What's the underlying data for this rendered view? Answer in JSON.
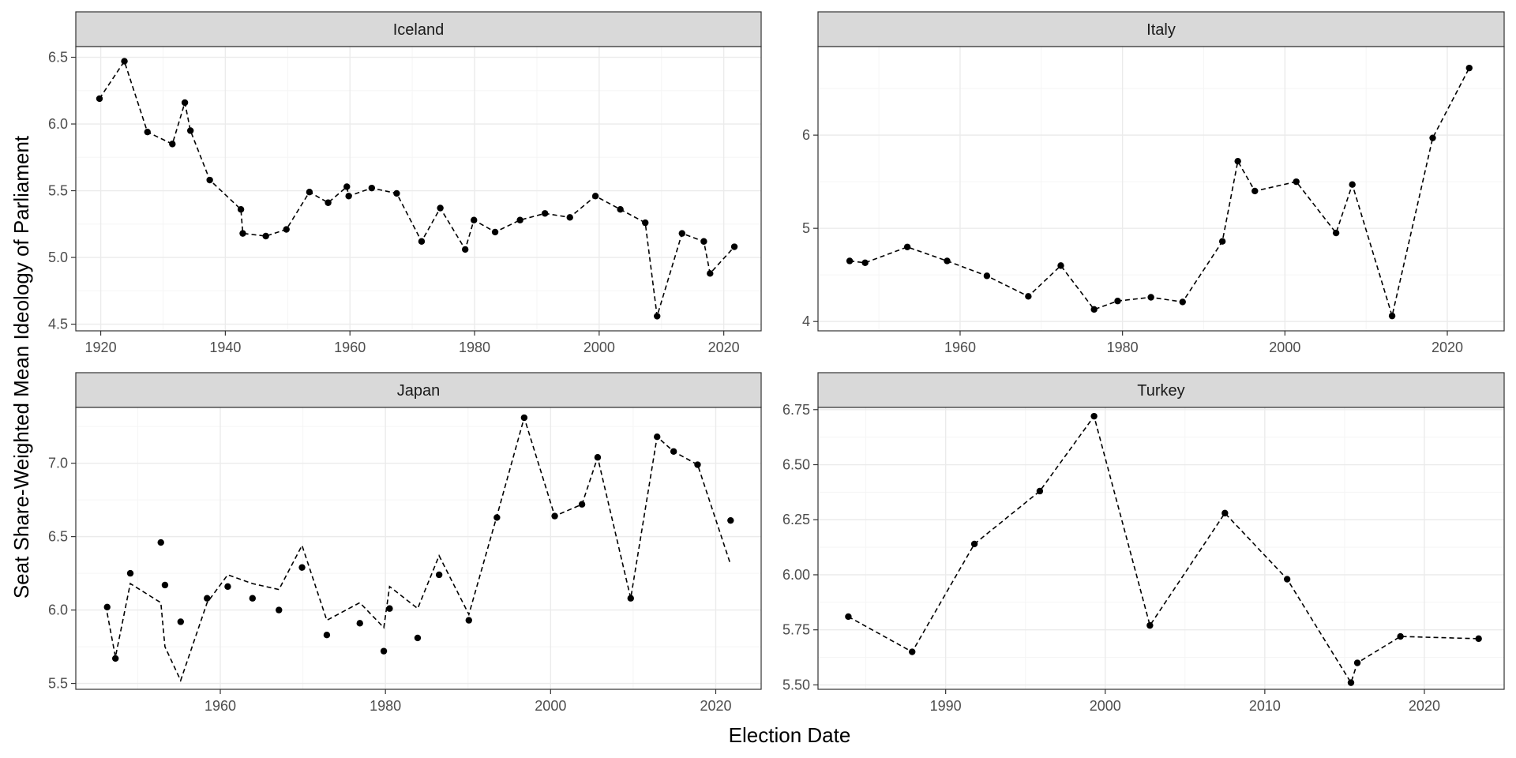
{
  "figure": {
    "xlabel": "Election Date",
    "ylabel": "Seat Share-Weighted Mean Ideology of Parliament"
  },
  "style": {
    "panel_border": "#333333",
    "strip_fill": "#d9d9d9",
    "grid_major": "#ebebeb",
    "grid_minor": "#f5f5f5",
    "point_color": "#000000",
    "line_color": "#000000"
  },
  "chart_data": [
    {
      "type": "scatter",
      "facet": "Iceland",
      "xlim": [
        1916,
        2026
      ],
      "ylim": [
        4.45,
        6.58
      ],
      "x_ticks": [
        1920,
        1940,
        1960,
        1980,
        2000,
        2020
      ],
      "y_ticks": [
        4.5,
        5.0,
        5.5,
        6.0,
        6.5
      ],
      "y_tick_labels": [
        "4.5",
        "5.0",
        "5.5",
        "6.0",
        "6.5"
      ],
      "grid": true,
      "points": [
        [
          1919.8,
          6.19
        ],
        [
          1923.8,
          6.47
        ],
        [
          1927.5,
          5.94
        ],
        [
          1931.5,
          5.85
        ],
        [
          1933.5,
          6.16
        ],
        [
          1934.4,
          5.95
        ],
        [
          1937.5,
          5.58
        ],
        [
          1942.5,
          5.36
        ],
        [
          1942.8,
          5.18
        ],
        [
          1946.5,
          5.16
        ],
        [
          1949.8,
          5.21
        ],
        [
          1953.5,
          5.49
        ],
        [
          1956.5,
          5.41
        ],
        [
          1959.5,
          5.53
        ],
        [
          1959.8,
          5.46
        ],
        [
          1963.5,
          5.52
        ],
        [
          1967.5,
          5.48
        ],
        [
          1971.5,
          5.12
        ],
        [
          1974.5,
          5.37
        ],
        [
          1978.5,
          5.06
        ],
        [
          1979.9,
          5.28
        ],
        [
          1983.3,
          5.19
        ],
        [
          1987.3,
          5.28
        ],
        [
          1991.3,
          5.33
        ],
        [
          1995.3,
          5.3
        ],
        [
          1999.4,
          5.46
        ],
        [
          2003.4,
          5.36
        ],
        [
          2007.4,
          5.26
        ],
        [
          2009.3,
          4.56
        ],
        [
          2013.3,
          5.18
        ],
        [
          2016.8,
          5.12
        ],
        [
          2017.8,
          4.88
        ],
        [
          2021.7,
          5.08
        ]
      ],
      "line": [
        [
          1919.8,
          6.19
        ],
        [
          1923.8,
          6.47
        ],
        [
          1927.5,
          5.94
        ],
        [
          1931.5,
          5.85
        ],
        [
          1933.5,
          6.16
        ],
        [
          1934.4,
          5.95
        ],
        [
          1937.5,
          5.58
        ],
        [
          1942.5,
          5.36
        ],
        [
          1942.8,
          5.18
        ],
        [
          1946.5,
          5.16
        ],
        [
          1949.8,
          5.21
        ],
        [
          1953.5,
          5.49
        ],
        [
          1956.5,
          5.41
        ],
        [
          1959.5,
          5.53
        ],
        [
          1959.8,
          5.46
        ],
        [
          1963.5,
          5.52
        ],
        [
          1967.5,
          5.48
        ],
        [
          1971.5,
          5.12
        ],
        [
          1974.5,
          5.37
        ],
        [
          1978.5,
          5.06
        ],
        [
          1979.9,
          5.28
        ],
        [
          1983.3,
          5.19
        ],
        [
          1987.3,
          5.28
        ],
        [
          1991.3,
          5.33
        ],
        [
          1995.3,
          5.3
        ],
        [
          1999.4,
          5.46
        ],
        [
          2003.4,
          5.36
        ],
        [
          2007.4,
          5.26
        ],
        [
          2009.3,
          4.56
        ],
        [
          2013.3,
          5.18
        ],
        [
          2016.8,
          5.12
        ],
        [
          2017.8,
          4.88
        ],
        [
          2021.7,
          5.08
        ]
      ]
    },
    {
      "type": "scatter",
      "facet": "Italy",
      "xlim": [
        1942.5,
        2027
      ],
      "ylim": [
        3.9,
        6.95
      ],
      "x_ticks": [
        1960,
        1980,
        2000,
        2020
      ],
      "y_ticks": [
        4,
        5,
        6
      ],
      "y_tick_labels": [
        "4",
        "5",
        "6"
      ],
      "grid": true,
      "points": [
        [
          1946.4,
          4.65
        ],
        [
          1948.3,
          4.63
        ],
        [
          1953.5,
          4.8
        ],
        [
          1958.4,
          4.65
        ],
        [
          1963.3,
          4.49
        ],
        [
          1968.4,
          4.27
        ],
        [
          1972.4,
          4.6
        ],
        [
          1976.5,
          4.13
        ],
        [
          1979.4,
          4.22
        ],
        [
          1983.5,
          4.26
        ],
        [
          1987.4,
          4.21
        ],
        [
          1992.3,
          4.86
        ],
        [
          1994.2,
          5.72
        ],
        [
          1996.3,
          5.4
        ],
        [
          2001.4,
          5.5
        ],
        [
          2006.3,
          4.95
        ],
        [
          2008.3,
          5.47
        ],
        [
          2013.2,
          4.06
        ],
        [
          2018.2,
          5.97
        ],
        [
          2022.7,
          6.72
        ]
      ],
      "line": [
        [
          1946.4,
          4.65
        ],
        [
          1948.3,
          4.63
        ],
        [
          1953.5,
          4.8
        ],
        [
          1958.4,
          4.65
        ],
        [
          1963.3,
          4.49
        ],
        [
          1968.4,
          4.27
        ],
        [
          1972.4,
          4.6
        ],
        [
          1976.5,
          4.13
        ],
        [
          1979.4,
          4.22
        ],
        [
          1983.5,
          4.26
        ],
        [
          1987.4,
          4.21
        ],
        [
          1992.3,
          4.86
        ],
        [
          1994.2,
          5.72
        ],
        [
          1996.3,
          5.4
        ],
        [
          2001.4,
          5.5
        ],
        [
          2006.3,
          4.95
        ],
        [
          2008.3,
          5.47
        ],
        [
          2013.2,
          4.06
        ],
        [
          2018.2,
          5.97
        ],
        [
          2022.7,
          6.72
        ]
      ]
    },
    {
      "type": "scatter",
      "facet": "Japan",
      "xlim": [
        1942.5,
        2025.5
      ],
      "ylim": [
        5.46,
        7.38
      ],
      "x_ticks": [
        1960,
        1980,
        2000,
        2020
      ],
      "y_ticks": [
        5.5,
        6.0,
        6.5,
        7.0
      ],
      "y_tick_labels": [
        "5.5",
        "6.0",
        "6.5",
        "7.0"
      ],
      "grid": true,
      "points": [
        [
          1946.3,
          6.02
        ],
        [
          1947.3,
          5.67
        ],
        [
          1949.1,
          6.25
        ],
        [
          1952.8,
          6.46
        ],
        [
          1953.3,
          6.17
        ],
        [
          1955.2,
          5.92
        ],
        [
          1958.4,
          6.08
        ],
        [
          1960.9,
          6.16
        ],
        [
          1963.9,
          6.08
        ],
        [
          1967.1,
          6.0
        ],
        [
          1969.9,
          6.29
        ],
        [
          1972.9,
          5.83
        ],
        [
          1976.9,
          5.91
        ],
        [
          1979.8,
          5.72
        ],
        [
          1980.5,
          6.01
        ],
        [
          1983.9,
          5.81
        ],
        [
          1986.5,
          6.24
        ],
        [
          1990.1,
          5.93
        ],
        [
          1993.5,
          6.63
        ],
        [
          1996.8,
          7.31
        ],
        [
          2000.5,
          6.64
        ],
        [
          2003.8,
          6.72
        ],
        [
          2005.7,
          7.04
        ],
        [
          2009.7,
          6.08
        ],
        [
          2012.9,
          7.18
        ],
        [
          2014.9,
          7.08
        ],
        [
          2017.8,
          6.99
        ],
        [
          2021.8,
          6.61
        ]
      ],
      "line": [
        [
          1946.3,
          5.98
        ],
        [
          1947.3,
          5.68
        ],
        [
          1949.1,
          6.18
        ],
        [
          1952.8,
          6.05
        ],
        [
          1953.3,
          5.75
        ],
        [
          1955.2,
          5.52
        ],
        [
          1958.4,
          6.05
        ],
        [
          1960.9,
          6.24
        ],
        [
          1963.9,
          6.18
        ],
        [
          1967.1,
          6.14
        ],
        [
          1969.9,
          6.44
        ],
        [
          1972.9,
          5.93
        ],
        [
          1976.9,
          6.05
        ],
        [
          1979.8,
          5.88
        ],
        [
          1980.5,
          6.16
        ],
        [
          1983.9,
          6.01
        ],
        [
          1986.5,
          6.37
        ],
        [
          1990.1,
          5.97
        ],
        [
          1993.5,
          6.64
        ],
        [
          1996.8,
          7.31
        ],
        [
          2000.5,
          6.64
        ],
        [
          2003.8,
          6.72
        ],
        [
          2005.7,
          7.04
        ],
        [
          2009.7,
          6.08
        ],
        [
          2012.9,
          7.18
        ],
        [
          2014.9,
          7.08
        ],
        [
          2017.8,
          6.99
        ],
        [
          2021.8,
          6.31
        ]
      ]
    },
    {
      "type": "scatter",
      "facet": "Turkey",
      "xlim": [
        1982,
        2025
      ],
      "ylim": [
        5.48,
        6.76
      ],
      "x_ticks": [
        1990,
        2000,
        2010,
        2020
      ],
      "y_ticks": [
        5.5,
        5.75,
        6.0,
        6.25,
        6.5,
        6.75
      ],
      "y_tick_labels": [
        "5.50",
        "5.75",
        "6.00",
        "6.25",
        "6.50",
        "6.75"
      ],
      "grid": true,
      "points": [
        [
          1983.9,
          5.81
        ],
        [
          1987.9,
          5.65
        ],
        [
          1991.8,
          6.14
        ],
        [
          1995.9,
          6.38
        ],
        [
          1999.3,
          6.72
        ],
        [
          2002.8,
          5.77
        ],
        [
          2007.5,
          6.28
        ],
        [
          2011.4,
          5.98
        ],
        [
          2015.4,
          5.51
        ],
        [
          2015.8,
          5.6
        ],
        [
          2018.5,
          5.72
        ],
        [
          2023.4,
          5.71
        ]
      ],
      "line": [
        [
          1983.9,
          5.81
        ],
        [
          1987.9,
          5.65
        ],
        [
          1991.8,
          6.14
        ],
        [
          1995.9,
          6.38
        ],
        [
          1999.3,
          6.72
        ],
        [
          2002.8,
          5.77
        ],
        [
          2007.5,
          6.28
        ],
        [
          2011.4,
          5.98
        ],
        [
          2015.4,
          5.51
        ],
        [
          2015.8,
          5.6
        ],
        [
          2018.5,
          5.72
        ],
        [
          2023.4,
          5.71
        ]
      ]
    }
  ]
}
